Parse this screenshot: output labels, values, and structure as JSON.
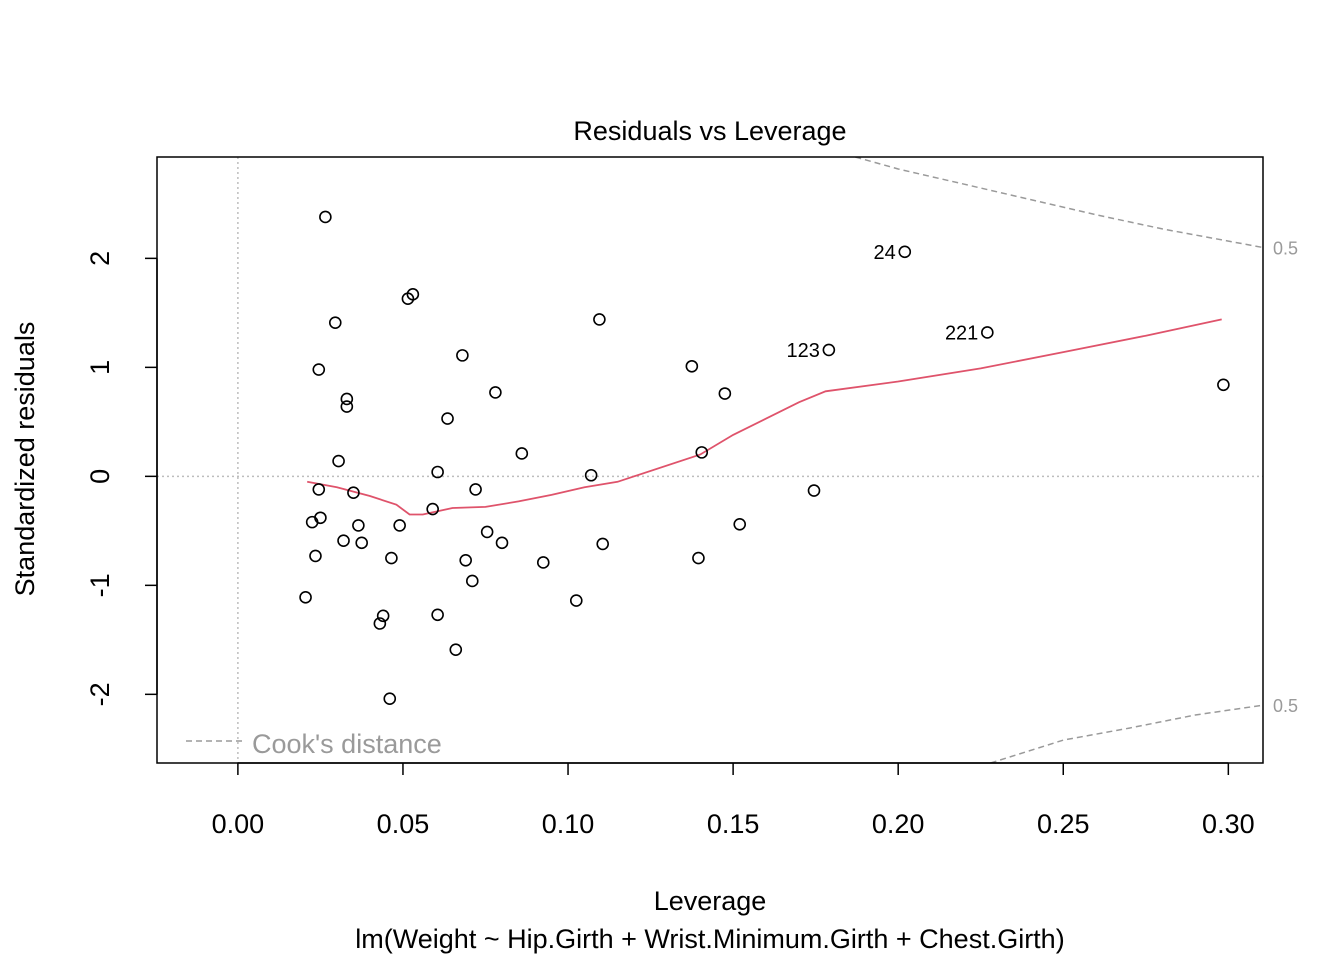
{
  "chart_data": {
    "type": "scatter",
    "title": "Residuals vs Leverage",
    "xlabel": "Leverage",
    "subtitle": "lm(Weight ~ Hip.Girth + Wrist.Minimum.Girth + Chest.Girth)",
    "ylabel": "Standardized residuals",
    "xlim": [
      -0.0245,
      0.3105
    ],
    "ylim": [
      -2.63,
      2.93
    ],
    "xticks": [
      0.0,
      0.05,
      0.1,
      0.15,
      0.2,
      0.25,
      0.3
    ],
    "xtick_labels": [
      "0.00",
      "0.05",
      "0.10",
      "0.15",
      "0.20",
      "0.25",
      "0.30"
    ],
    "yticks": [
      -2,
      -1,
      0,
      1,
      2
    ],
    "ytick_labels": [
      "-2",
      "-1",
      "0",
      "1",
      "2"
    ],
    "grid": false,
    "reference_lines": {
      "x": 0,
      "y": 0
    },
    "points": [
      {
        "x": 0.0265,
        "y": 2.38
      },
      {
        "x": 0.0295,
        "y": 1.41
      },
      {
        "x": 0.0245,
        "y": 0.98
      },
      {
        "x": 0.0205,
        "y": -1.11
      },
      {
        "x": 0.0225,
        "y": -0.42
      },
      {
        "x": 0.0235,
        "y": -0.73
      },
      {
        "x": 0.0245,
        "y": -0.12
      },
      {
        "x": 0.025,
        "y": -0.38
      },
      {
        "x": 0.0305,
        "y": 0.14
      },
      {
        "x": 0.032,
        "y": -0.59
      },
      {
        "x": 0.033,
        "y": 0.71
      },
      {
        "x": 0.033,
        "y": 0.64
      },
      {
        "x": 0.035,
        "y": -0.15
      },
      {
        "x": 0.0365,
        "y": -0.45
      },
      {
        "x": 0.0375,
        "y": -0.61
      },
      {
        "x": 0.043,
        "y": -1.35
      },
      {
        "x": 0.044,
        "y": -1.28
      },
      {
        "x": 0.046,
        "y": -2.04
      },
      {
        "x": 0.0465,
        "y": -0.75
      },
      {
        "x": 0.049,
        "y": -0.45
      },
      {
        "x": 0.0515,
        "y": 1.63
      },
      {
        "x": 0.053,
        "y": 1.67
      },
      {
        "x": 0.059,
        "y": -0.3
      },
      {
        "x": 0.0605,
        "y": 0.04
      },
      {
        "x": 0.0605,
        "y": -1.27
      },
      {
        "x": 0.0635,
        "y": 0.53
      },
      {
        "x": 0.066,
        "y": -1.59
      },
      {
        "x": 0.068,
        "y": 1.11
      },
      {
        "x": 0.069,
        "y": -0.77
      },
      {
        "x": 0.071,
        "y": -0.96
      },
      {
        "x": 0.072,
        "y": -0.12
      },
      {
        "x": 0.0755,
        "y": -0.51
      },
      {
        "x": 0.078,
        "y": 0.77
      },
      {
        "x": 0.08,
        "y": -0.61
      },
      {
        "x": 0.086,
        "y": 0.21
      },
      {
        "x": 0.0925,
        "y": -0.79
      },
      {
        "x": 0.1025,
        "y": -1.14
      },
      {
        "x": 0.107,
        "y": 0.01
      },
      {
        "x": 0.1095,
        "y": 1.44
      },
      {
        "x": 0.1105,
        "y": -0.62
      },
      {
        "x": 0.1375,
        "y": 1.01
      },
      {
        "x": 0.1395,
        "y": -0.75
      },
      {
        "x": 0.1405,
        "y": 0.22
      },
      {
        "x": 0.1475,
        "y": 0.76
      },
      {
        "x": 0.152,
        "y": -0.44
      },
      {
        "x": 0.1745,
        "y": -0.13
      },
      {
        "x": 0.179,
        "y": 1.16,
        "label": "123"
      },
      {
        "x": 0.202,
        "y": 2.06,
        "label": "24"
      },
      {
        "x": 0.227,
        "y": 1.32,
        "label": "221"
      },
      {
        "x": 0.2985,
        "y": 0.84
      }
    ],
    "smooth_line": [
      {
        "x": 0.021,
        "y": -0.05
      },
      {
        "x": 0.03,
        "y": -0.1
      },
      {
        "x": 0.04,
        "y": -0.18
      },
      {
        "x": 0.048,
        "y": -0.26
      },
      {
        "x": 0.052,
        "y": -0.35
      },
      {
        "x": 0.056,
        "y": -0.35
      },
      {
        "x": 0.065,
        "y": -0.29
      },
      {
        "x": 0.075,
        "y": -0.28
      },
      {
        "x": 0.085,
        "y": -0.23
      },
      {
        "x": 0.095,
        "y": -0.17
      },
      {
        "x": 0.105,
        "y": -0.1
      },
      {
        "x": 0.115,
        "y": -0.05
      },
      {
        "x": 0.14,
        "y": 0.2
      },
      {
        "x": 0.15,
        "y": 0.38
      },
      {
        "x": 0.16,
        "y": 0.53
      },
      {
        "x": 0.17,
        "y": 0.68
      },
      {
        "x": 0.178,
        "y": 0.78
      },
      {
        "x": 0.2,
        "y": 0.87
      },
      {
        "x": 0.225,
        "y": 0.99
      },
      {
        "x": 0.25,
        "y": 1.14
      },
      {
        "x": 0.275,
        "y": 1.29
      },
      {
        "x": 0.298,
        "y": 1.44
      }
    ],
    "cooks_upper": [
      {
        "x": 0.187,
        "y": 2.93
      },
      {
        "x": 0.2,
        "y": 2.82
      },
      {
        "x": 0.22,
        "y": 2.68
      },
      {
        "x": 0.24,
        "y": 2.54
      },
      {
        "x": 0.26,
        "y": 2.4
      },
      {
        "x": 0.28,
        "y": 2.27
      },
      {
        "x": 0.3105,
        "y": 2.1
      }
    ],
    "cooks_lower": [
      {
        "x": 0.228,
        "y": -2.63
      },
      {
        "x": 0.25,
        "y": -2.42
      },
      {
        "x": 0.27,
        "y": -2.31
      },
      {
        "x": 0.29,
        "y": -2.19
      },
      {
        "x": 0.3105,
        "y": -2.1
      }
    ],
    "contour_labels": [
      {
        "text": "0.5",
        "y": 2.1
      },
      {
        "text": "0.5",
        "y": -2.1
      }
    ],
    "legend": {
      "label": "Cook's distance",
      "position": "bottom-left"
    },
    "colors": {
      "points": "#000000",
      "smooth": "#DF536B",
      "cooks": "#9a9a9a",
      "reference": "#bdbdbd"
    }
  }
}
